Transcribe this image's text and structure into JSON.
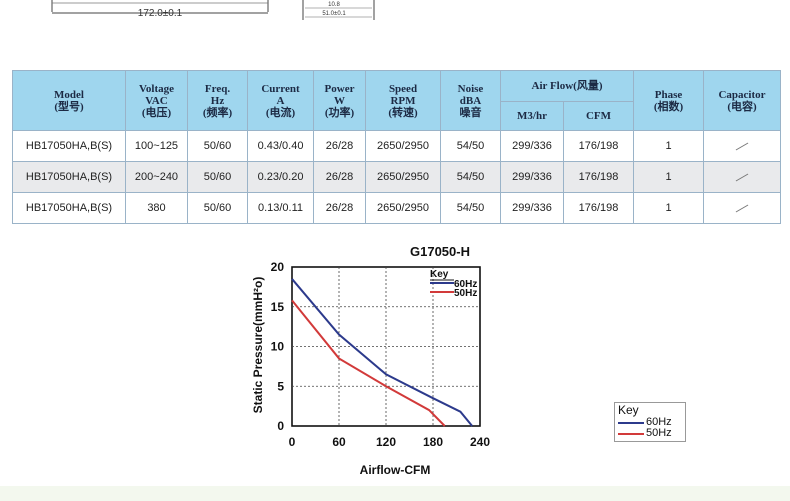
{
  "drawing": {
    "dim_main": "172.0±0.1",
    "dim_small_1": "10.8",
    "dim_small_2": "51.0±0.1"
  },
  "table": {
    "headers": {
      "model": [
        "Model",
        "(型号)"
      ],
      "voltage": [
        "Voltage",
        "VAC",
        "(电压)"
      ],
      "freq": [
        "Freq.",
        "Hz",
        "(频率)"
      ],
      "current": [
        "Current",
        "A",
        "(电流)"
      ],
      "power": [
        "Power",
        "W",
        "(功率)"
      ],
      "speed": [
        "Speed",
        "RPM",
        "(转速)"
      ],
      "noise": [
        "Noise",
        "dBA",
        "噪音"
      ],
      "airflow": "Air Flow(风量)",
      "airflow_m3": "M3/hr",
      "airflow_cfm": "CFM",
      "phase": [
        "Phase",
        "(相数)"
      ],
      "capacitor": [
        "Capacitor",
        "(电容)"
      ]
    },
    "rows": [
      {
        "model": "HB17050HA,B(S)",
        "voltage": "100~125",
        "freq": "50/60",
        "current": "0.43/0.40",
        "power": "26/28",
        "speed": "2650/2950",
        "noise": "54/50",
        "m3": "299/336",
        "cfm": "176/198",
        "phase": "1"
      },
      {
        "model": "HB17050HA,B(S)",
        "voltage": "200~240",
        "freq": "50/60",
        "current": "0.23/0.20",
        "power": "26/28",
        "speed": "2650/2950",
        "noise": "54/50",
        "m3": "299/336",
        "cfm": "176/198",
        "phase": "1"
      },
      {
        "model": "HB17050HA,B(S)",
        "voltage": "380",
        "freq": "50/60",
        "current": "0.13/0.11",
        "power": "26/28",
        "speed": "2650/2950",
        "noise": "54/50",
        "m3": "299/336",
        "cfm": "176/198",
        "phase": "1"
      }
    ]
  },
  "chart_data": {
    "type": "line",
    "title": "G17050-H",
    "xlabel": "Airflow-CFM",
    "ylabel": "Static Pressure(mmH²o)",
    "xlim": [
      0,
      240
    ],
    "ylim": [
      0,
      20
    ],
    "xticks": [
      "0",
      "60",
      "120",
      "180",
      "240"
    ],
    "yticks": [
      "0",
      "5",
      "10",
      "15",
      "20"
    ],
    "grid": true,
    "legend_title": "Key",
    "colors": {
      "60Hz": "#2c3a8c",
      "50Hz": "#d23a3a"
    },
    "series": [
      {
        "name": "60Hz",
        "x": [
          0,
          60,
          120,
          180,
          215,
          230
        ],
        "y": [
          18.5,
          11.5,
          6.5,
          3.5,
          1.8,
          0
        ]
      },
      {
        "name": "50Hz",
        "x": [
          0,
          60,
          120,
          175,
          195
        ],
        "y": [
          15.8,
          8.5,
          5,
          2,
          0
        ]
      }
    ]
  },
  "ext_key": {
    "title": "Key",
    "items": [
      {
        "label": "60Hz",
        "color": "#2c3a8c"
      },
      {
        "label": "50Hz",
        "color": "#d23a3a"
      }
    ]
  }
}
